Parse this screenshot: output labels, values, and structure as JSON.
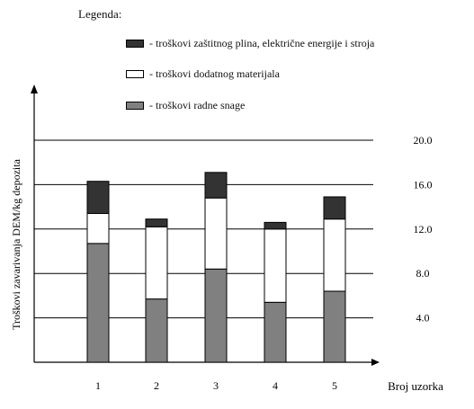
{
  "chart_data": {
    "type": "bar",
    "stacked": true,
    "legend_title": "Legenda:",
    "ylabel": "Troškovi zavarivanja DEM/kg depozita",
    "xlabel": "Broj uzorka",
    "categories": [
      "1",
      "2",
      "3",
      "4",
      "5"
    ],
    "ylim": [
      0,
      20
    ],
    "yticks": [
      "4.0",
      "8.0",
      "12.0",
      "16.0",
      "20.0"
    ],
    "ytick_values": [
      4,
      8,
      12,
      16,
      20
    ],
    "grid": true,
    "legend_position": "top",
    "series": [
      {
        "name": "troškovi radne snage",
        "color": "#808080",
        "values": [
          10.7,
          5.7,
          8.4,
          5.4,
          6.4
        ]
      },
      {
        "name": "troškovi dodatnog materijala",
        "color": "#ffffff",
        "values": [
          2.7,
          6.5,
          6.4,
          6.6,
          6.5
        ]
      },
      {
        "name": "troškovi zaštitnog plina, električne energije i stroja",
        "color": "#333333",
        "values": [
          2.9,
          0.7,
          2.3,
          0.6,
          2.0
        ]
      }
    ]
  }
}
